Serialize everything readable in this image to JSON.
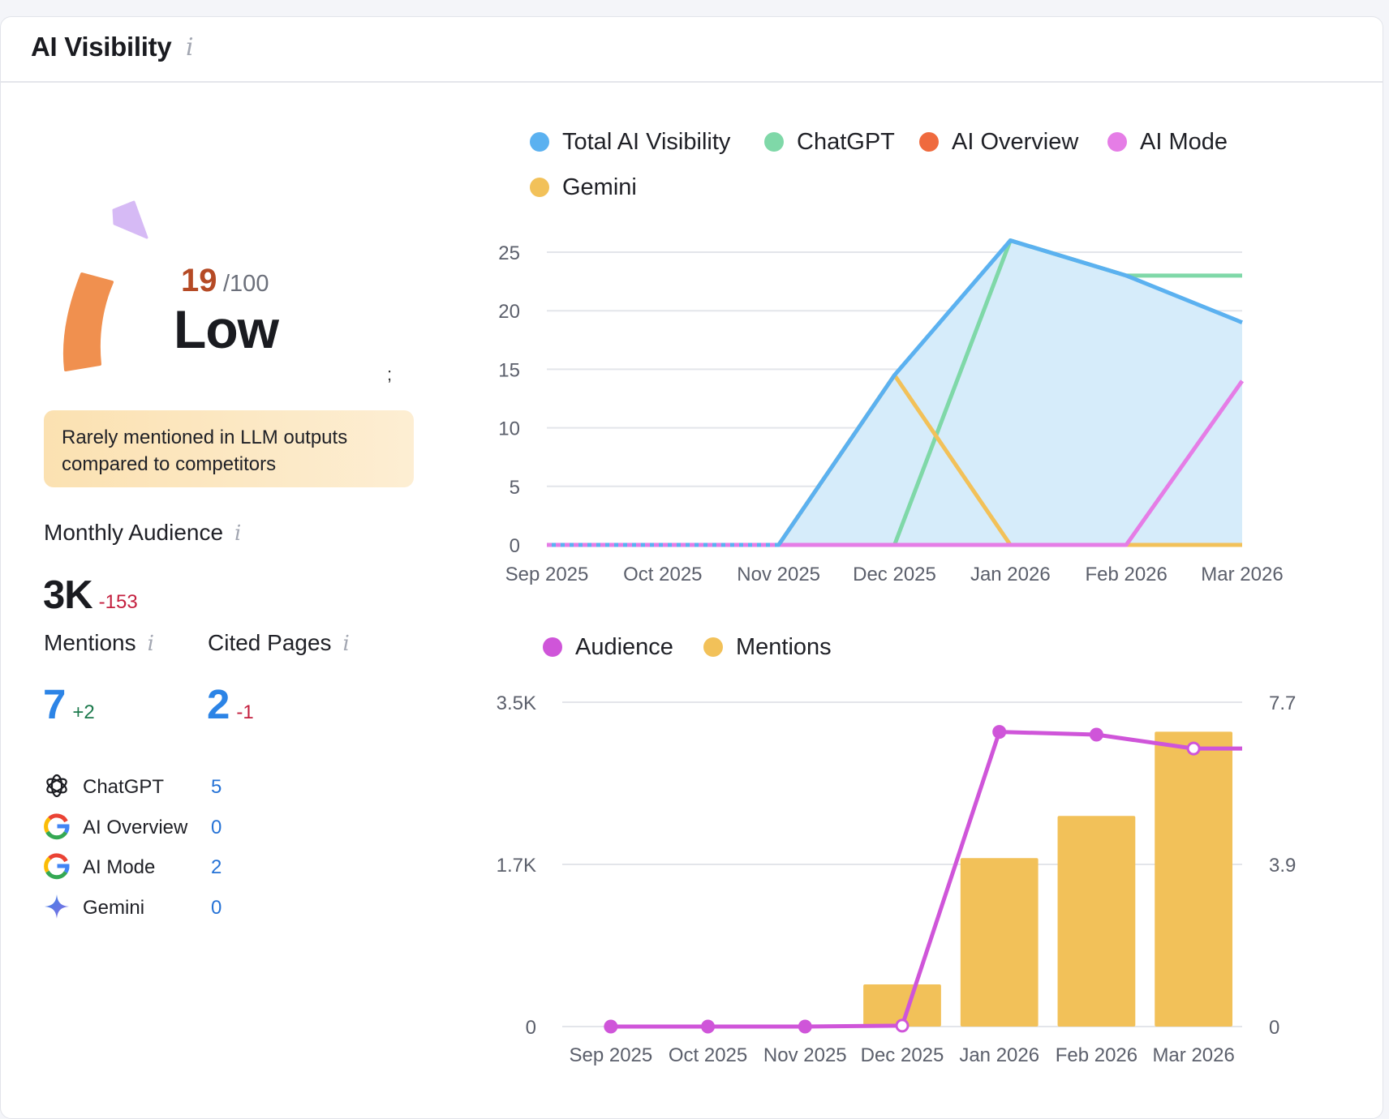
{
  "header": {
    "title": "AI Visibility",
    "info": "i"
  },
  "score": {
    "value": "19",
    "max": "/100",
    "level": "Low",
    "stray_char": ";"
  },
  "note": {
    "line1": "Rarely mentioned in LLM outputs",
    "line2": "compared to competitors"
  },
  "monthly_audience": {
    "label": "Monthly Audience",
    "info": "i",
    "value": "3K",
    "delta": "-153"
  },
  "mentions": {
    "label": "Mentions",
    "info": "i",
    "value": "7",
    "delta": "+2"
  },
  "cited_pages": {
    "label": "Cited Pages",
    "info": "i",
    "value": "2",
    "delta": "-1"
  },
  "sources": [
    {
      "name": "ChatGPT",
      "value": "5",
      "icon": "chatgpt-icon"
    },
    {
      "name": "AI Overview",
      "value": "0",
      "icon": "google-icon"
    },
    {
      "name": "AI Mode",
      "value": "2",
      "icon": "google-icon"
    },
    {
      "name": "Gemini",
      "value": "0",
      "icon": "gemini-icon"
    }
  ],
  "colors": {
    "total": "#5bb1f0",
    "total_fill": "#d6ecfa",
    "chatgpt": "#7fd8a8",
    "ai_overview": "#ef6a3e",
    "ai_mode": "#e57de6",
    "gemini": "#f2c159",
    "audience": "#cf55d9",
    "mentions": "#f2c159",
    "accent_blue": "#2c84e6",
    "score_red": "#b54a25"
  },
  "chart_data": [
    {
      "type": "line",
      "title": "",
      "legend": [
        "Total AI Visibility",
        "ChatGPT",
        "AI Overview",
        "AI Mode",
        "Gemini"
      ],
      "categories": [
        "Sep 2025",
        "Oct 2025",
        "Nov 2025",
        "Dec 2025",
        "Jan 2026",
        "Feb 2026",
        "Mar 2026"
      ],
      "yticks": [
        "0",
        "5",
        "10",
        "15",
        "20",
        "25"
      ],
      "ylim": [
        0,
        25
      ],
      "series": [
        {
          "name": "Total AI Visibility",
          "values": [
            0,
            0,
            0,
            14.5,
            26,
            23,
            19
          ],
          "area": true
        },
        {
          "name": "ChatGPT",
          "values": [
            0,
            0,
            0,
            0,
            26,
            23,
            23
          ]
        },
        {
          "name": "AI Overview",
          "values": [
            0,
            0,
            0,
            0,
            0,
            0,
            0
          ]
        },
        {
          "name": "AI Mode",
          "values": [
            0,
            0,
            0,
            0,
            0,
            0,
            14
          ]
        },
        {
          "name": "Gemini",
          "values": [
            0,
            0,
            0,
            14.5,
            0,
            0,
            0
          ]
        }
      ]
    },
    {
      "type": "bar",
      "title": "",
      "legend": [
        "Audience",
        "Mentions"
      ],
      "categories": [
        "Sep 2025",
        "Oct 2025",
        "Nov 2025",
        "Dec 2025",
        "Jan 2026",
        "Feb 2026",
        "Mar 2026"
      ],
      "yticks_left": [
        "0",
        "1.7K",
        "3.5K"
      ],
      "yticks_right": [
        "0",
        "3.9",
        "7.7"
      ],
      "ylim_left": [
        0,
        3500
      ],
      "ylim_right": [
        0,
        7.7
      ],
      "series": [
        {
          "name": "Mentions",
          "axis": "right",
          "kind": "bar",
          "values": [
            0,
            0,
            0,
            1,
            4,
            5,
            7
          ]
        },
        {
          "name": "Audience",
          "axis": "left",
          "kind": "line",
          "values": [
            0,
            0,
            0,
            10,
            3180,
            3150,
            3000
          ]
        }
      ]
    }
  ]
}
